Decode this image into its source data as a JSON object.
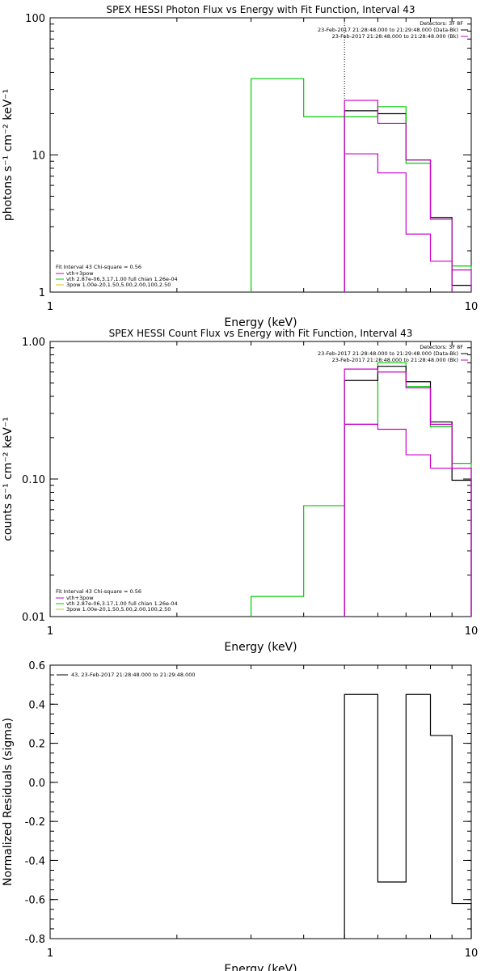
{
  "chart_data": [
    {
      "type": "line",
      "step": true,
      "title": "SPEX HESSI Photon Flux vs Energy with Fit Function, Interval 43",
      "xlabel": "Energy (keV)",
      "ylabel": "photons s⁻¹ cm⁻² keV⁻¹",
      "xscale": "log",
      "yscale": "log",
      "xlim": [
        1,
        10
      ],
      "ylim": [
        1,
        100
      ],
      "xticks": [
        {
          "v": 1,
          "label": "1"
        },
        {
          "v": 10,
          "label": "10"
        }
      ],
      "yticks": [
        {
          "v": 1,
          "label": "1"
        },
        {
          "v": 10,
          "label": "10"
        },
        {
          "v": 100,
          "label": "100"
        }
      ],
      "marker_line_x": 5.0,
      "legend_top_right": {
        "header": "Detectors: 3F 8F",
        "entries": [
          {
            "text": "23-Feb-2017 21:28:48.000 to 21:29:48.000 (Data-Bk)",
            "color": "#000000"
          },
          {
            "text": "23-Feb-2017 21:28:48.000 to 21:28:48.000 (Bk)",
            "color": "#cc00cc"
          }
        ]
      },
      "legend_bottom_left": {
        "header": "Fit Interval 43   Chi-square = 0.56",
        "entries": [
          {
            "text": "vth+3pow",
            "color": "#cc00cc"
          },
          {
            "text": "vth 2.87e-06,3.17,1.00  full chian 1.26e-04",
            "color": "#00cc00"
          },
          {
            "text": "3pow 1.00e-20,1.50,5.00,2.00,100,2.50",
            "color": "#cccc00"
          }
        ]
      },
      "series": [
        {
          "color": "#000000",
          "edges": [
            5.0,
            6.0,
            7.0,
            8.0,
            9.0,
            10.0
          ],
          "values": [
            21,
            20,
            9.2,
            3.5,
            1.12
          ]
        },
        {
          "color": "#00cc00",
          "edges": [
            3.0,
            4.0,
            5.0,
            6.0,
            7.0,
            8.0,
            9.0,
            10.0
          ],
          "values": [
            36,
            19,
            19,
            22.5,
            8.7,
            3.4,
            1.55
          ]
        },
        {
          "color": "#cc00cc",
          "edges": [
            5.0,
            6.0,
            7.0,
            8.0,
            9.0,
            10.0
          ],
          "values": [
            25,
            17,
            9.2,
            3.4,
            1.45
          ]
        },
        {
          "color": "#cc00cc",
          "edges": [
            5.0,
            6.0,
            7.0,
            8.0,
            9.0
          ],
          "values": [
            10.2,
            7.4,
            2.65,
            1.68
          ]
        }
      ]
    },
    {
      "type": "line",
      "step": true,
      "title": "SPEX HESSI Count Flux vs Energy with Fit Function, Interval 43",
      "xlabel": "Energy (keV)",
      "ylabel": "counts s⁻¹ cm⁻² keV⁻¹",
      "xscale": "log",
      "yscale": "log",
      "xlim": [
        1,
        10
      ],
      "ylim": [
        0.01,
        1
      ],
      "xticks": [
        {
          "v": 1,
          "label": "1"
        },
        {
          "v": 10,
          "label": "10"
        }
      ],
      "yticks": [
        {
          "v": 0.01,
          "label": "0.01"
        },
        {
          "v": 0.1,
          "label": "0.10"
        },
        {
          "v": 1,
          "label": "1.00"
        }
      ],
      "legend_top_right": {
        "header": "Detectors: 3F 8F",
        "entries": [
          {
            "text": "23-Feb-2017 21:28:48.000 to 21:29:48.000 (Data-Bk)",
            "color": "#000000"
          },
          {
            "text": "23-Feb-2017 21:28:48.000 to 21:28:48.000 (Bk)",
            "color": "#cc00cc"
          }
        ]
      },
      "legend_bottom_left": {
        "header": "Fit Interval 43   Chi-square = 0.56",
        "entries": [
          {
            "text": "vth+3pow",
            "color": "#cc00cc"
          },
          {
            "text": "vth 2.87e-06,3.17,1.00  full chian 1.26e-04",
            "color": "#00cc00"
          },
          {
            "text": "3pow 1.00e-20,1.50,5.00,2.00,100,2.50",
            "color": "#cccc00"
          }
        ]
      },
      "series": [
        {
          "color": "#00cc00",
          "edges": [
            3.0,
            4.0,
            5.0,
            6.0,
            7.0,
            8.0,
            9.0,
            10.0
          ],
          "values": [
            0.014,
            0.064,
            0.25,
            0.7,
            0.47,
            0.24,
            0.13
          ]
        },
        {
          "color": "#000000",
          "edges": [
            5.0,
            6.0,
            7.0,
            8.0,
            9.0,
            10.0
          ],
          "values": [
            0.52,
            0.66,
            0.51,
            0.26,
            0.098
          ]
        },
        {
          "color": "#cc00cc",
          "edges": [
            5.0,
            6.0,
            7.0,
            8.0,
            9.0,
            10.0
          ],
          "values": [
            0.63,
            0.6,
            0.46,
            0.25,
            0.12
          ]
        },
        {
          "color": "#cc00cc",
          "edges": [
            5.0,
            6.0,
            7.0,
            8.0,
            9.0,
            10.0
          ],
          "values": [
            0.25,
            0.23,
            0.15,
            0.12,
            0.12
          ]
        }
      ]
    },
    {
      "type": "line",
      "step": true,
      "xlabel": "Energy (keV)",
      "ylabel": "Normalized Residuals (sigma)",
      "xscale": "log",
      "yscale": "linear",
      "xlim": [
        1,
        10
      ],
      "ylim": [
        -0.8,
        0.6
      ],
      "xticks": [
        {
          "v": 1,
          "label": "1"
        },
        {
          "v": 10,
          "label": "10"
        }
      ],
      "yticks": [
        {
          "v": 0.6,
          "label": "0.6"
        },
        {
          "v": 0.4,
          "label": "0.4"
        },
        {
          "v": 0.2,
          "label": "0.2"
        },
        {
          "v": 0.0,
          "label": "0.0"
        },
        {
          "v": -0.2,
          "label": "-0.2"
        },
        {
          "v": -0.4,
          "label": "-0.4"
        },
        {
          "v": -0.6,
          "label": "-0.6"
        },
        {
          "v": -0.8,
          "label": "-0.8"
        }
      ],
      "legend": {
        "text": "43, 23-Feb-2017 21:28:48.000 to 21:29:48.000",
        "color": "#000000"
      },
      "series": [
        {
          "color": "#000000",
          "edges": [
            5.0,
            6.0,
            7.0,
            8.0,
            9.0,
            10.0
          ],
          "values": [
            0.45,
            -0.51,
            0.45,
            0.24,
            -0.62
          ]
        }
      ]
    }
  ]
}
